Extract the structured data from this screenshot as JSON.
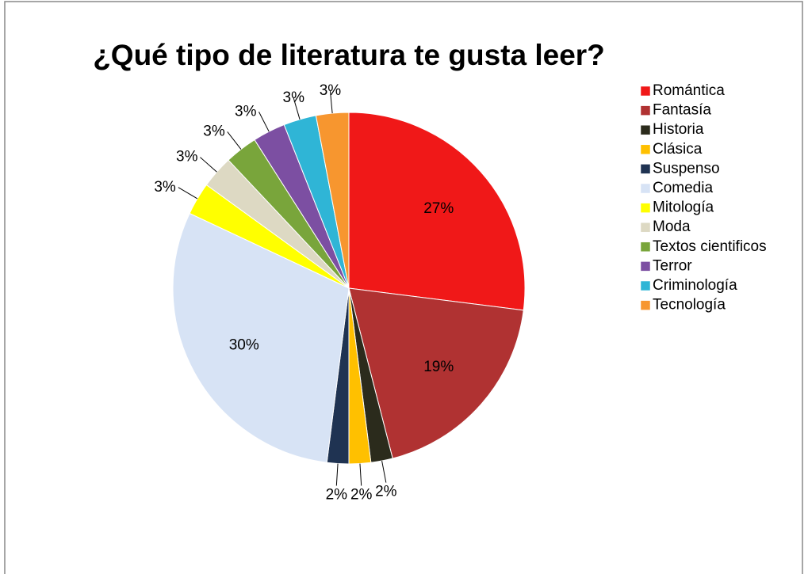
{
  "chart_data": {
    "type": "pie",
    "title": "¿Qué tipo de literatura te gusta leer?",
    "categories": [
      "Romántica",
      "Fantasía",
      "Historia",
      "Clásica",
      "Suspenso",
      "Comedia",
      "Mitología",
      "Moda",
      "Textos cientificos",
      "Terror",
      "Criminología",
      "Tecnología"
    ],
    "values": [
      27,
      19,
      2,
      2,
      2,
      30,
      3,
      3,
      3,
      3,
      3,
      3
    ],
    "value_labels": [
      "27%",
      "19%",
      "2%",
      "2%",
      "2%",
      "30%",
      "3%",
      "3%",
      "3%",
      "3%",
      "3%",
      "3%"
    ],
    "colors": [
      "#f01818",
      "#b03232",
      "#2b2b1c",
      "#ffc000",
      "#1f3352",
      "#d7e3f5",
      "#ffff00",
      "#ddd9c3",
      "#79a53b",
      "#7c4fa2",
      "#2fb5d6",
      "#f7962f"
    ],
    "legend": "right"
  }
}
